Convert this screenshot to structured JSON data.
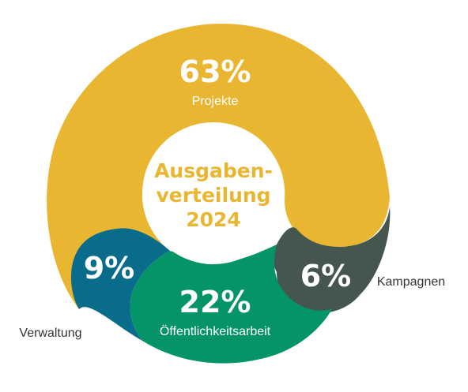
{
  "chart_data": {
    "type": "pie",
    "title": [
      "Ausgaben-",
      "verteilung",
      "2024"
    ],
    "slices": [
      {
        "label": "Projekte",
        "value": 63,
        "display": "63%",
        "color": "#E9B631"
      },
      {
        "label": "Kampagnen",
        "value": 6,
        "display": "6%",
        "color": "#44564E"
      },
      {
        "label": "Öffentlichkeitsarbeit",
        "value": 22,
        "display": "22%",
        "color": "#049467"
      },
      {
        "label": "Verwaltung",
        "value": 9,
        "display": "9%",
        "color": "#096C8B"
      }
    ],
    "colors": {
      "title": "#E9B631",
      "center_fill": "#ffffff"
    }
  }
}
